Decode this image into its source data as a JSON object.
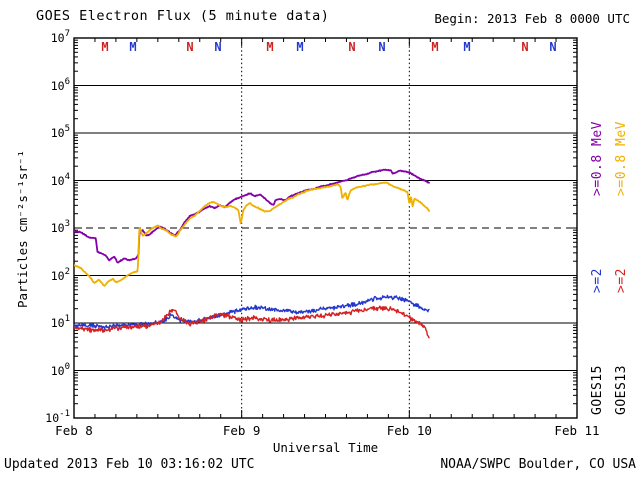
{
  "header": {
    "title": "GOES Electron Flux (5 minute data)",
    "begin": "Begin: 2013 Feb 8 0000 UTC"
  },
  "footer": {
    "updated": "Updated 2013 Feb 10 03:16:02 UTC",
    "source": "NOAA/SWPC Boulder, CO USA"
  },
  "legend": {
    "columns": [
      {
        "entries": [
          {
            "text": "GOES15",
            "color": "#000000"
          },
          {
            "text": ">=2",
            "color": "#2438cc"
          },
          {
            "text": ">=0.8 MeV",
            "color": "#8400a8"
          }
        ]
      },
      {
        "entries": [
          {
            "text": "GOES13",
            "color": "#000000"
          },
          {
            "text": ">=2",
            "color": "#d42222"
          },
          {
            "text": ">=0.8 MeV",
            "color": "#efb000"
          }
        ]
      }
    ]
  },
  "events": [
    {
      "t": 0.185,
      "label": "M",
      "color": "#cc2222"
    },
    {
      "t": 0.352,
      "label": "M",
      "color": "#2438cc"
    },
    {
      "t": 0.692,
      "label": "N",
      "color": "#cc2222"
    },
    {
      "t": 0.859,
      "label": "N",
      "color": "#2438cc"
    },
    {
      "t": 1.169,
      "label": "M",
      "color": "#cc2222"
    },
    {
      "t": 1.348,
      "label": "M",
      "color": "#2438cc"
    },
    {
      "t": 1.658,
      "label": "N",
      "color": "#cc2222"
    },
    {
      "t": 1.837,
      "label": "N",
      "color": "#2438cc"
    },
    {
      "t": 2.153,
      "label": "M",
      "color": "#cc2222"
    },
    {
      "t": 2.344,
      "label": "M",
      "color": "#2438cc"
    },
    {
      "t": 2.69,
      "label": "N",
      "color": "#cc2222"
    },
    {
      "t": 2.857,
      "label": "N",
      "color": "#2438cc"
    }
  ],
  "chart_data": {
    "type": "line",
    "title": "GOES Electron Flux (5 minute data)",
    "xlabel": "Universal Time",
    "ylabel": "Particles cm⁻²s⁻¹sr⁻¹",
    "x_ticks": [
      "Feb 8",
      "Feb 9",
      "Feb 10",
      "Feb 11"
    ],
    "x_range_days": [
      0,
      3
    ],
    "x_minor_ticks_per_day": 8,
    "y_exponents": [
      7,
      6,
      5,
      4,
      3,
      2,
      1,
      0,
      -1
    ],
    "y_range_log": [
      -1,
      7
    ],
    "grid": "solid horizontal lines each decade",
    "threshold_log10": 3,
    "day_boundary_lines_t": [
      1,
      2
    ],
    "legend_position": "right, rotated",
    "series": [
      {
        "name": "GOES15 >=0.8 MeV",
        "color": "#8400a8",
        "width": 1.8,
        "noise": 0.012,
        "points": [
          [
            0,
            2.93
          ],
          [
            0.04,
            2.91
          ],
          [
            0.09,
            2.8
          ],
          [
            0.13,
            2.78
          ],
          [
            0.14,
            2.5
          ],
          [
            0.19,
            2.42
          ],
          [
            0.21,
            2.32
          ],
          [
            0.24,
            2.4
          ],
          [
            0.26,
            2.27
          ],
          [
            0.3,
            2.36
          ],
          [
            0.33,
            2.32
          ],
          [
            0.37,
            2.36
          ],
          [
            0.385,
            2.45
          ],
          [
            0.39,
            2.91
          ],
          [
            0.41,
            2.95
          ],
          [
            0.43,
            2.84
          ],
          [
            0.45,
            2.86
          ],
          [
            0.48,
            2.95
          ],
          [
            0.51,
            3.03
          ],
          [
            0.54,
            2.99
          ],
          [
            0.57,
            2.91
          ],
          [
            0.6,
            2.84
          ],
          [
            0.63,
            2.95
          ],
          [
            0.66,
            3.12
          ],
          [
            0.69,
            3.25
          ],
          [
            0.72,
            3.29
          ],
          [
            0.75,
            3.34
          ],
          [
            0.78,
            3.42
          ],
          [
            0.81,
            3.46
          ],
          [
            0.84,
            3.42
          ],
          [
            0.87,
            3.48
          ],
          [
            0.9,
            3.44
          ],
          [
            0.93,
            3.53
          ],
          [
            0.96,
            3.61
          ],
          [
            0.99,
            3.65
          ],
          [
            1.02,
            3.69
          ],
          [
            1.05,
            3.73
          ],
          [
            1.08,
            3.67
          ],
          [
            1.11,
            3.71
          ],
          [
            1.14,
            3.62
          ],
          [
            1.17,
            3.52
          ],
          [
            1.19,
            3.48
          ],
          [
            1.2,
            3.58
          ],
          [
            1.23,
            3.62
          ],
          [
            1.26,
            3.58
          ],
          [
            1.29,
            3.67
          ],
          [
            1.32,
            3.71
          ],
          [
            1.35,
            3.75
          ],
          [
            1.38,
            3.79
          ],
          [
            1.41,
            3.81
          ],
          [
            1.44,
            3.83
          ],
          [
            1.47,
            3.87
          ],
          [
            1.5,
            3.89
          ],
          [
            1.53,
            3.92
          ],
          [
            1.56,
            3.94
          ],
          [
            1.59,
            3.98
          ],
          [
            1.62,
            4.0
          ],
          [
            1.65,
            4.04
          ],
          [
            1.68,
            4.08
          ],
          [
            1.71,
            4.11
          ],
          [
            1.74,
            4.13
          ],
          [
            1.77,
            4.17
          ],
          [
            1.8,
            4.19
          ],
          [
            1.83,
            4.21
          ],
          [
            1.86,
            4.23
          ],
          [
            1.89,
            4.21
          ],
          [
            1.9,
            4.15
          ],
          [
            1.92,
            4.17
          ],
          [
            1.94,
            4.21
          ],
          [
            1.97,
            4.19
          ],
          [
            2.0,
            4.17
          ],
          [
            2.03,
            4.11
          ],
          [
            2.06,
            4.04
          ],
          [
            2.09,
            4.0
          ],
          [
            2.12,
            3.95
          ]
        ]
      },
      {
        "name": "GOES13 >=0.8 MeV",
        "color": "#efb000",
        "width": 1.8,
        "noise": 0.012,
        "points": [
          [
            0,
            2.22
          ],
          [
            0.04,
            2.16
          ],
          [
            0.07,
            2.05
          ],
          [
            0.1,
            1.95
          ],
          [
            0.12,
            1.84
          ],
          [
            0.15,
            1.91
          ],
          [
            0.18,
            1.78
          ],
          [
            0.2,
            1.86
          ],
          [
            0.23,
            1.93
          ],
          [
            0.25,
            1.86
          ],
          [
            0.27,
            1.88
          ],
          [
            0.3,
            1.95
          ],
          [
            0.33,
            2.03
          ],
          [
            0.36,
            2.07
          ],
          [
            0.38,
            2.09
          ],
          [
            0.39,
            3.02
          ],
          [
            0.41,
            2.83
          ],
          [
            0.43,
            2.89
          ],
          [
            0.45,
            2.95
          ],
          [
            0.48,
            3.02
          ],
          [
            0.5,
            3.06
          ],
          [
            0.52,
            2.99
          ],
          [
            0.55,
            2.95
          ],
          [
            0.58,
            2.86
          ],
          [
            0.61,
            2.82
          ],
          [
            0.63,
            2.93
          ],
          [
            0.66,
            3.07
          ],
          [
            0.69,
            3.2
          ],
          [
            0.72,
            3.26
          ],
          [
            0.75,
            3.36
          ],
          [
            0.78,
            3.46
          ],
          [
            0.81,
            3.53
          ],
          [
            0.83,
            3.55
          ],
          [
            0.86,
            3.5
          ],
          [
            0.88,
            3.46
          ],
          [
            0.91,
            3.44
          ],
          [
            0.93,
            3.46
          ],
          [
            0.95,
            3.44
          ],
          [
            0.98,
            3.38
          ],
          [
            0.995,
            3.08
          ],
          [
            1.01,
            3.38
          ],
          [
            1.03,
            3.48
          ],
          [
            1.05,
            3.53
          ],
          [
            1.07,
            3.46
          ],
          [
            1.1,
            3.42
          ],
          [
            1.12,
            3.38
          ],
          [
            1.14,
            3.34
          ],
          [
            1.17,
            3.36
          ],
          [
            1.19,
            3.42
          ],
          [
            1.22,
            3.48
          ],
          [
            1.25,
            3.55
          ],
          [
            1.28,
            3.61
          ],
          [
            1.31,
            3.65
          ],
          [
            1.34,
            3.71
          ],
          [
            1.37,
            3.75
          ],
          [
            1.4,
            3.79
          ],
          [
            1.42,
            3.81
          ],
          [
            1.46,
            3.83
          ],
          [
            1.48,
            3.85
          ],
          [
            1.52,
            3.87
          ],
          [
            1.54,
            3.89
          ],
          [
            1.57,
            3.92
          ],
          [
            1.59,
            3.87
          ],
          [
            1.6,
            3.62
          ],
          [
            1.62,
            3.75
          ],
          [
            1.63,
            3.58
          ],
          [
            1.65,
            3.79
          ],
          [
            1.68,
            3.85
          ],
          [
            1.71,
            3.87
          ],
          [
            1.74,
            3.89
          ],
          [
            1.77,
            3.92
          ],
          [
            1.8,
            3.92
          ],
          [
            1.82,
            3.94
          ],
          [
            1.86,
            3.96
          ],
          [
            1.88,
            3.92
          ],
          [
            1.91,
            3.87
          ],
          [
            1.94,
            3.83
          ],
          [
            1.97,
            3.79
          ],
          [
            1.99,
            3.75
          ],
          [
            2.0,
            3.49
          ],
          [
            2.01,
            3.66
          ],
          [
            2.02,
            3.45
          ],
          [
            2.03,
            3.62
          ],
          [
            2.05,
            3.58
          ],
          [
            2.07,
            3.53
          ],
          [
            2.09,
            3.46
          ],
          [
            2.11,
            3.4
          ],
          [
            2.12,
            3.35
          ]
        ]
      },
      {
        "name": "GOES15 >=2 MeV",
        "color": "#2438cc",
        "width": 1.4,
        "noise": 0.055,
        "points": [
          [
            0,
            0.96
          ],
          [
            0.1,
            0.94
          ],
          [
            0.21,
            0.92
          ],
          [
            0.33,
            0.96
          ],
          [
            0.45,
            0.98
          ],
          [
            0.54,
            1.04
          ],
          [
            0.58,
            1.17
          ],
          [
            0.63,
            1.06
          ],
          [
            0.72,
            1.02
          ],
          [
            0.81,
            1.11
          ],
          [
            0.9,
            1.19
          ],
          [
            0.99,
            1.27
          ],
          [
            1.08,
            1.32
          ],
          [
            1.17,
            1.29
          ],
          [
            1.26,
            1.25
          ],
          [
            1.35,
            1.23
          ],
          [
            1.44,
            1.27
          ],
          [
            1.53,
            1.32
          ],
          [
            1.62,
            1.36
          ],
          [
            1.71,
            1.42
          ],
          [
            1.8,
            1.51
          ],
          [
            1.89,
            1.55
          ],
          [
            1.94,
            1.53
          ],
          [
            2.0,
            1.44
          ],
          [
            2.06,
            1.34
          ],
          [
            2.12,
            1.25
          ]
        ]
      },
      {
        "name": "GOES13 >=2 MeV",
        "color": "#d42222",
        "width": 1.4,
        "noise": 0.06,
        "points": [
          [
            0,
            0.89
          ],
          [
            0.1,
            0.85
          ],
          [
            0.21,
            0.87
          ],
          [
            0.33,
            0.92
          ],
          [
            0.45,
            0.94
          ],
          [
            0.52,
            1.02
          ],
          [
            0.57,
            1.23
          ],
          [
            0.6,
            1.27
          ],
          [
            0.63,
            1.11
          ],
          [
            0.69,
            0.98
          ],
          [
            0.78,
            1.06
          ],
          [
            0.84,
            1.15
          ],
          [
            0.88,
            1.19
          ],
          [
            0.93,
            1.13
          ],
          [
            0.99,
            1.06
          ],
          [
            1.08,
            1.11
          ],
          [
            1.17,
            1.06
          ],
          [
            1.26,
            1.08
          ],
          [
            1.35,
            1.11
          ],
          [
            1.44,
            1.13
          ],
          [
            1.53,
            1.17
          ],
          [
            1.62,
            1.21
          ],
          [
            1.71,
            1.27
          ],
          [
            1.8,
            1.32
          ],
          [
            1.89,
            1.29
          ],
          [
            1.94,
            1.23
          ],
          [
            2.0,
            1.11
          ],
          [
            2.05,
            1.02
          ],
          [
            2.09,
            0.94
          ],
          [
            2.106,
            0.79
          ],
          [
            2.118,
            0.68
          ]
        ]
      }
    ]
  }
}
